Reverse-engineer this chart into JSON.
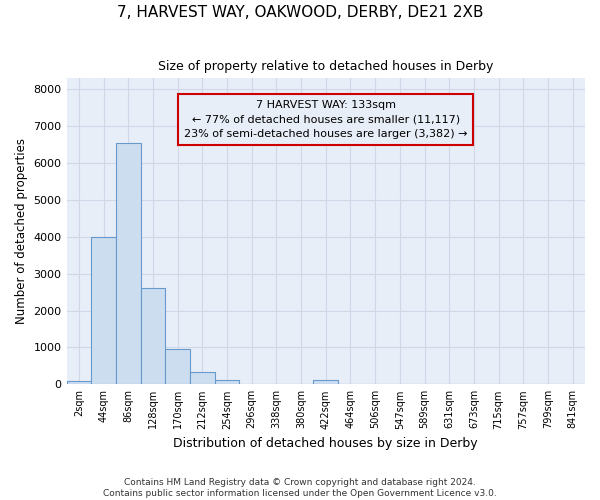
{
  "title1": "7, HARVEST WAY, OAKWOOD, DERBY, DE21 2XB",
  "title2": "Size of property relative to detached houses in Derby",
  "xlabel": "Distribution of detached houses by size in Derby",
  "ylabel": "Number of detached properties",
  "footnote1": "Contains HM Land Registry data © Crown copyright and database right 2024.",
  "footnote2": "Contains public sector information licensed under the Open Government Licence v3.0.",
  "bin_labels": [
    "2sqm",
    "44sqm",
    "86sqm",
    "128sqm",
    "170sqm",
    "212sqm",
    "254sqm",
    "296sqm",
    "338sqm",
    "380sqm",
    "422sqm",
    "464sqm",
    "506sqm",
    "547sqm",
    "589sqm",
    "631sqm",
    "673sqm",
    "715sqm",
    "757sqm",
    "799sqm",
    "841sqm"
  ],
  "bar_values": [
    80,
    4000,
    6550,
    2600,
    950,
    330,
    130,
    0,
    0,
    0,
    130,
    0,
    0,
    0,
    0,
    0,
    0,
    0,
    0,
    0,
    0
  ],
  "bar_color": "#ccddf0",
  "bar_edge_color": "#6699cc",
  "annotation_line1": "7 HARVEST WAY: 133sqm",
  "annotation_line2": "← 77% of detached houses are smaller (11,117)",
  "annotation_line3": "23% of semi-detached houses are larger (3,382) →",
  "annotation_box_color": "#cc0000",
  "ylim": [
    0,
    8300
  ],
  "yticks": [
    0,
    1000,
    2000,
    3000,
    4000,
    5000,
    6000,
    7000,
    8000
  ],
  "grid_color": "#d0d8e8",
  "background_color": "#ffffff",
  "plot_bg_color": "#e8eef8"
}
